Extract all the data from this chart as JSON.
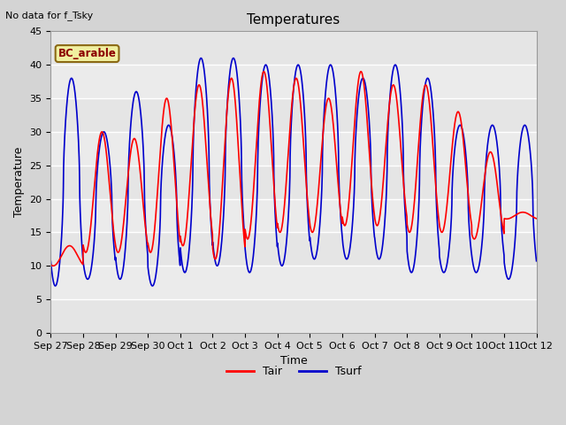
{
  "title": "Temperatures",
  "xlabel": "Time",
  "ylabel": "Temperature",
  "annotation_text": "No data for f_Tsky",
  "box_label": "BC_arable",
  "ylim": [
    0,
    45
  ],
  "yticks": [
    0,
    5,
    10,
    15,
    20,
    25,
    30,
    35,
    40,
    45
  ],
  "xtick_labels": [
    "Sep 27",
    "Sep 28",
    "Sep 29",
    "Sep 30",
    "Oct 1",
    "Oct 2",
    "Oct 3",
    "Oct 4",
    "Oct 5",
    "Oct 6",
    "Oct 7",
    "Oct 8",
    "Oct 9",
    "Oct 10",
    "Oct 11",
    "Oct 12"
  ],
  "tair_color": "#ff0000",
  "tsurf_color": "#0000cc",
  "plot_bg_color": "#ebebeb",
  "fig_bg_color": "#d4d4d4",
  "legend_tair": "Tair",
  "legend_tsurf": "Tsurf",
  "line_width": 1.2,
  "n_days": 15,
  "points_per_day": 144
}
